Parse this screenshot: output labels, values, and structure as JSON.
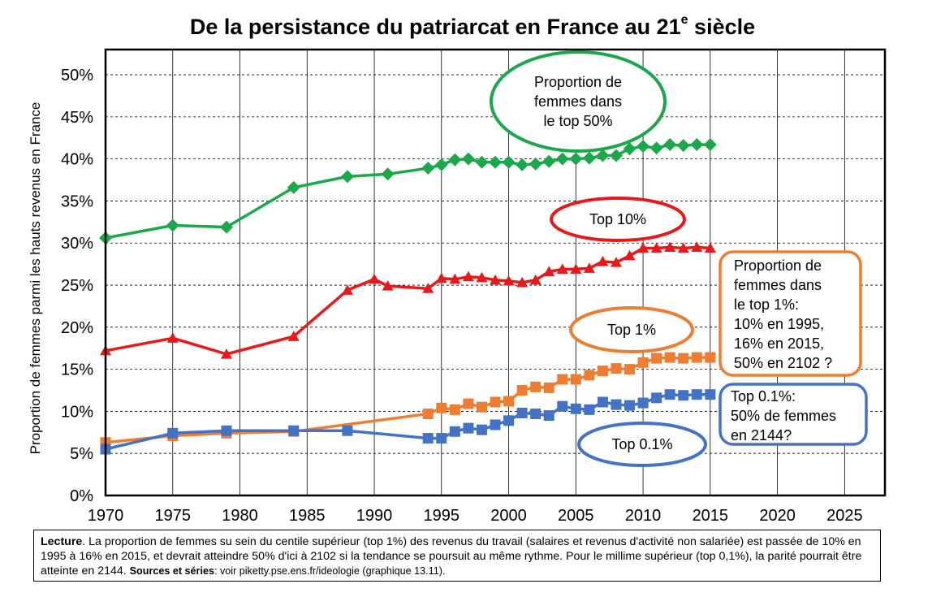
{
  "chart_data": {
    "type": "line",
    "title_main": "De la persistance du patriarcat en France au 21",
    "title_sup": "e",
    "title_end": " siècle",
    "ylabel": "Proportion de femmes parmi les hauts revenus en France",
    "xlabel": "",
    "xlim": [
      1970,
      2028
    ],
    "ylim": [
      0,
      53
    ],
    "x_ticks": [
      1970,
      1975,
      1980,
      1985,
      1990,
      1995,
      2000,
      2005,
      2010,
      2015,
      2020,
      2025
    ],
    "y_ticks": [
      0,
      5,
      10,
      15,
      20,
      25,
      30,
      35,
      40,
      45,
      50
    ],
    "y_tick_labels": [
      "0%",
      "5%",
      "10%",
      "15%",
      "20%",
      "25%",
      "30%",
      "35%",
      "40%",
      "45%",
      "50%"
    ],
    "grid": true,
    "series": [
      {
        "color": "#1aa84a",
        "marker": "diamond",
        "x": [
          1970,
          1975,
          1979,
          1984,
          1988,
          1991,
          1994,
          1995,
          1996,
          1997,
          1998,
          1999,
          2000,
          2001,
          2002,
          2003,
          2004,
          2005,
          2006,
          2007,
          2008,
          2009,
          2010,
          2011,
          2012,
          2013,
          2014,
          2015
        ],
        "y": [
          30.6,
          32.1,
          31.9,
          36.6,
          37.9,
          38.2,
          38.9,
          39.3,
          39.9,
          40.0,
          39.6,
          39.6,
          39.6,
          39.3,
          39.4,
          39.7,
          40.0,
          40.0,
          40.1,
          40.4,
          40.4,
          41.2,
          41.5,
          41.3,
          41.7,
          41.6,
          41.7,
          41.7
        ]
      },
      {
        "color": "#e8191b",
        "marker": "triangle",
        "x": [
          1970,
          1975,
          1979,
          1984,
          1988,
          1990,
          1991,
          1994,
          1995,
          1996,
          1997,
          1998,
          1999,
          2000,
          2001,
          2002,
          2003,
          2004,
          2005,
          2006,
          2007,
          2008,
          2009,
          2010,
          2011,
          2012,
          2013,
          2014,
          2015
        ],
        "y": [
          17.2,
          18.7,
          16.8,
          18.9,
          24.4,
          25.7,
          24.9,
          24.6,
          25.8,
          25.7,
          26.0,
          25.9,
          25.6,
          25.5,
          25.3,
          25.6,
          26.6,
          26.9,
          26.9,
          27.0,
          27.8,
          27.7,
          28.5,
          29.4,
          29.4,
          29.5,
          29.4,
          29.5,
          29.4
        ]
      },
      {
        "color": "#ed7d31",
        "marker": "square",
        "x": [
          1970,
          1975,
          1979,
          1984,
          1994,
          1995,
          1996,
          1997,
          1998,
          1999,
          2000,
          2001,
          2002,
          2003,
          2004,
          2005,
          2006,
          2007,
          2008,
          2009,
          2010,
          2011,
          2012,
          2013,
          2014,
          2015
        ],
        "y": [
          6.3,
          7.1,
          7.4,
          7.6,
          9.7,
          10.4,
          10.2,
          10.9,
          10.5,
          11.1,
          11.2,
          12.5,
          12.9,
          12.8,
          13.8,
          13.8,
          14.3,
          14.8,
          15.1,
          15.0,
          15.8,
          16.3,
          16.4,
          16.3,
          16.4,
          16.4
        ]
      },
      {
        "color": "#4472c4",
        "marker": "square",
        "x": [
          1970,
          1975,
          1979,
          1984,
          1988,
          1994,
          1995,
          1996,
          1997,
          1998,
          1999,
          2000,
          2001,
          2002,
          2003,
          2004,
          2005,
          2006,
          2007,
          2008,
          2009,
          2010,
          2011,
          2012,
          2013,
          2014,
          2015
        ],
        "y": [
          5.5,
          7.4,
          7.7,
          7.7,
          7.7,
          6.8,
          6.8,
          7.6,
          8.0,
          7.8,
          8.4,
          8.9,
          9.8,
          9.7,
          9.5,
          10.6,
          10.3,
          10.2,
          11.1,
          10.8,
          10.7,
          11.0,
          11.6,
          12.0,
          11.9,
          12.0,
          12.0
        ]
      }
    ],
    "annotations": [
      {
        "shape": "ellipse",
        "color": "#1aa84a",
        "lines": [
          "Proportion de",
          "femmes dans",
          "le top 50%"
        ]
      },
      {
        "shape": "ellipse",
        "color": "#e8191b",
        "lines": [
          "Top 10%"
        ]
      },
      {
        "shape": "ellipse",
        "color": "#ed7d31",
        "lines": [
          "Top 1%"
        ]
      },
      {
        "shape": "rounded-box",
        "color": "#ed7d31",
        "lines": [
          "Proportion de",
          "femmes dans",
          "le top 1%:",
          "10% en 1995,",
          "16% en 2015,",
          "50% en 2102 ?"
        ]
      },
      {
        "shape": "rounded-box",
        "color": "#4472c4",
        "lines": [
          "Top 0.1%:",
          "50% de femmes",
          "en 2144?"
        ]
      },
      {
        "shape": "ellipse",
        "color": "#4472c4",
        "lines": [
          "Top 0.1%"
        ]
      }
    ]
  },
  "reading_note": {
    "label": "Lecture",
    "text": ". La proportion de femmes su sein du centile supérieur (top 1%) des revenus du travail (salaires et revenus d'activité non salariée) est passée de 10% en 1995 à 16% en 2015, et devrait atteindre 50% d'ici à 2102 si la tendance se poursuit au même rythme. Pour le millime supérieur (top 0,1%), la parité pourrait être atteinte en 2144.  ",
    "sources_label": "Sources et séries",
    "sources_text": ": voir piketty.pse.ens.fr/ideologie (graphique 13.11)."
  }
}
